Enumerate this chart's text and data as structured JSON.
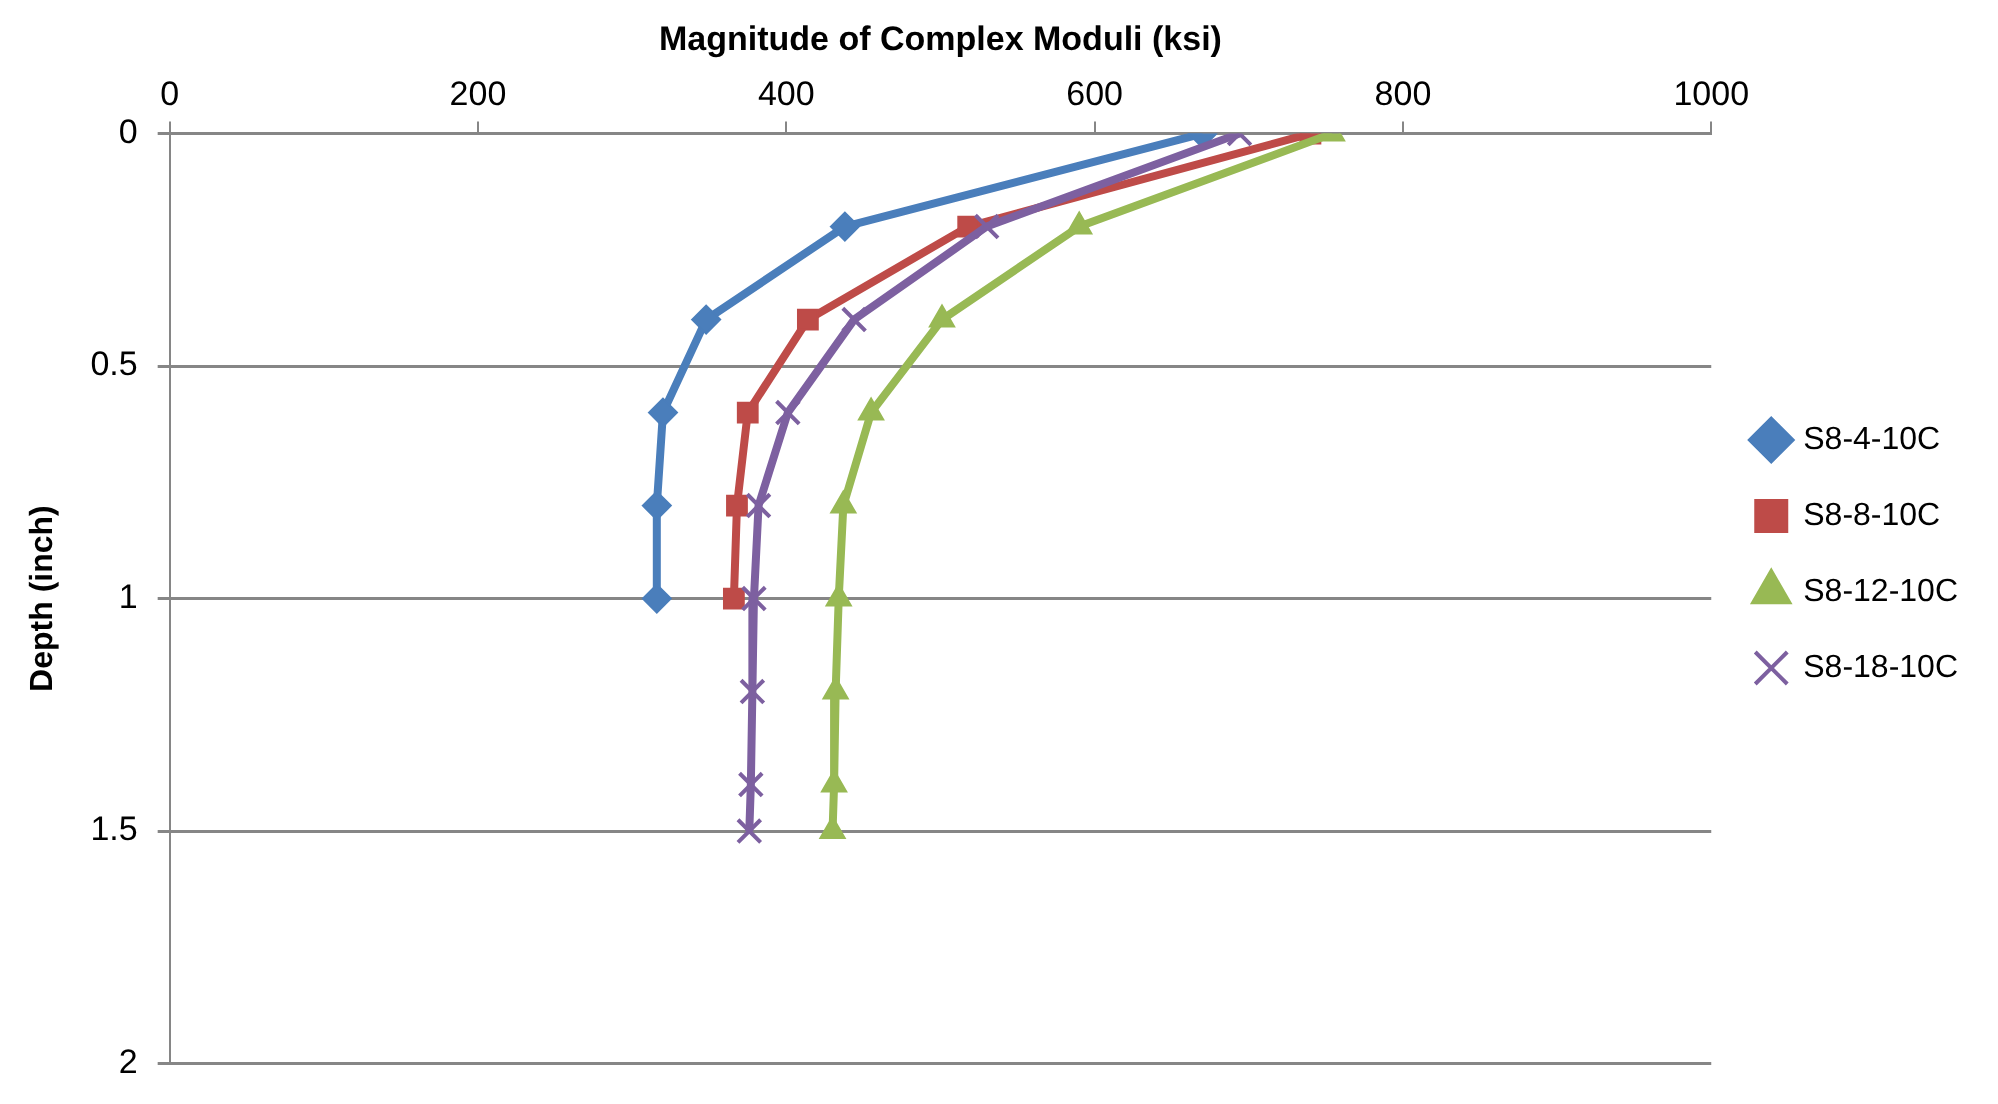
{
  "chart_data": {
    "type": "line",
    "xlabel": "Magnitude of Complex Moduli (ksi)",
    "ylabel": "Depth (inch)",
    "xlim": [
      0,
      1000
    ],
    "xticks": [
      0,
      200,
      400,
      600,
      800,
      1000
    ],
    "ylim": [
      2,
      0
    ],
    "yticks": [
      0,
      0.5,
      1,
      1.5,
      2
    ],
    "grid": "y",
    "legend": "right",
    "series": [
      {
        "name": "S8-4-10C",
        "color": "#4a7ebb",
        "marker": "diamond",
        "x": [
          670,
          438,
          348,
          320,
          316,
          316
        ],
        "values": [
          0,
          0.2,
          0.4,
          0.6,
          0.8,
          1.0
        ]
      },
      {
        "name": "S8-8-10C",
        "color": "#be4b48",
        "marker": "square",
        "x": [
          740,
          518,
          414,
          375,
          368,
          366
        ],
        "values": [
          0,
          0.2,
          0.4,
          0.6,
          0.8,
          1.0
        ]
      },
      {
        "name": "S8-12-10C",
        "color": "#98b954",
        "marker": "triangle",
        "x": [
          754,
          590,
          501,
          455,
          437,
          434,
          432,
          431,
          430
        ],
        "values": [
          0,
          0.2,
          0.4,
          0.6,
          0.8,
          1.0,
          1.2,
          1.4,
          1.5
        ]
      },
      {
        "name": "S8-18-10C",
        "color": "#7d60a0",
        "marker": "cross",
        "x": [
          694,
          530,
          444,
          401,
          382,
          379,
          378,
          377,
          376
        ],
        "values": [
          0,
          0.2,
          0.4,
          0.6,
          0.8,
          1.0,
          1.2,
          1.4,
          1.5
        ]
      }
    ]
  }
}
